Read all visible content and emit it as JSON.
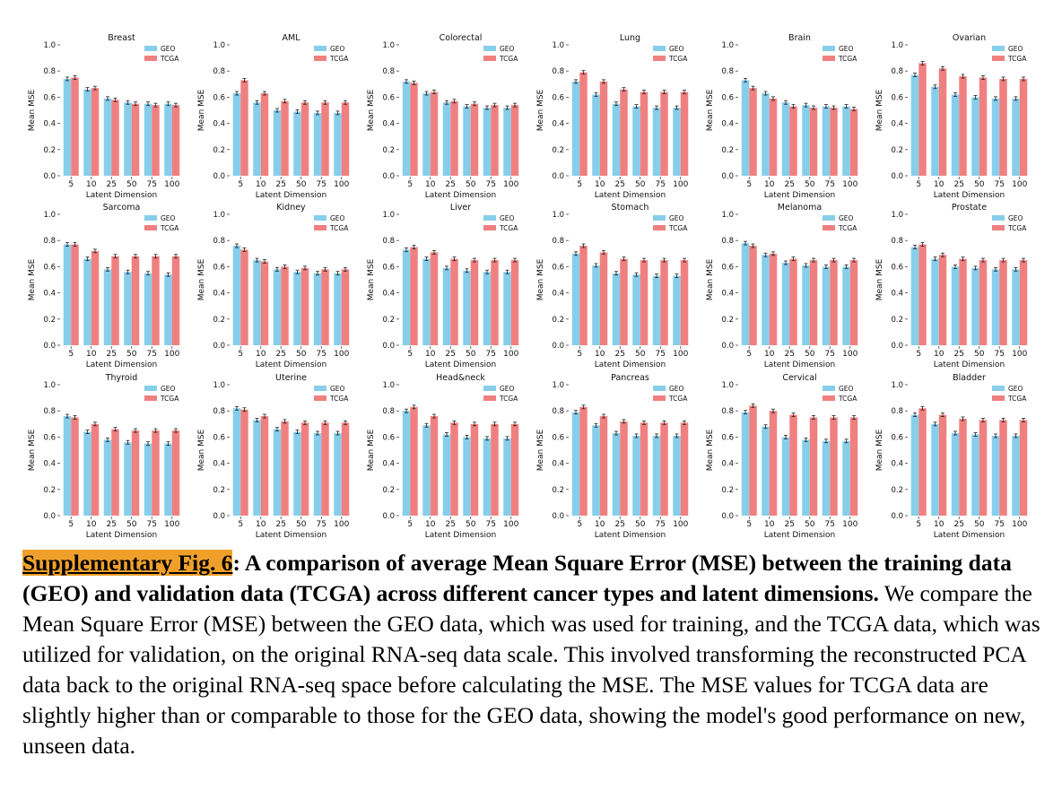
{
  "chart_data": {
    "type": "bar",
    "layout": "6x3 grid of grouped bar charts",
    "categories": [
      "5",
      "10",
      "25",
      "50",
      "75",
      "100"
    ],
    "xlabel": "Latent Dimension",
    "ylabel": "Mean MSE",
    "ylim": [
      0,
      1.0
    ],
    "yticks": [
      "0.0",
      "0.2",
      "0.4",
      "0.6",
      "0.8",
      "1.0"
    ],
    "legend_position": "top-right",
    "series_names": [
      "GEO",
      "TCGA"
    ],
    "series_colors": [
      "#87ceeb",
      "#f08080"
    ],
    "panels": [
      {
        "title": "Breast",
        "series": [
          {
            "name": "GEO",
            "values": [
              0.74,
              0.66,
              0.59,
              0.56,
              0.55,
              0.55
            ]
          },
          {
            "name": "TCGA",
            "values": [
              0.75,
              0.67,
              0.58,
              0.55,
              0.54,
              0.54
            ]
          }
        ]
      },
      {
        "title": "AML",
        "series": [
          {
            "name": "GEO",
            "values": [
              0.63,
              0.56,
              0.5,
              0.49,
              0.48,
              0.48
            ]
          },
          {
            "name": "TCGA",
            "values": [
              0.73,
              0.63,
              0.57,
              0.56,
              0.56,
              0.56
            ]
          }
        ]
      },
      {
        "title": "Colorectal",
        "series": [
          {
            "name": "GEO",
            "values": [
              0.72,
              0.63,
              0.56,
              0.53,
              0.52,
              0.52
            ]
          },
          {
            "name": "TCGA",
            "values": [
              0.71,
              0.64,
              0.57,
              0.55,
              0.54,
              0.54
            ]
          }
        ]
      },
      {
        "title": "Lung",
        "series": [
          {
            "name": "GEO",
            "values": [
              0.72,
              0.62,
              0.55,
              0.53,
              0.52,
              0.52
            ]
          },
          {
            "name": "TCGA",
            "values": [
              0.79,
              0.72,
              0.66,
              0.64,
              0.64,
              0.64
            ]
          }
        ]
      },
      {
        "title": "Brain",
        "series": [
          {
            "name": "GEO",
            "values": [
              0.73,
              0.63,
              0.56,
              0.54,
              0.53,
              0.53
            ]
          },
          {
            "name": "TCGA",
            "values": [
              0.67,
              0.59,
              0.53,
              0.52,
              0.52,
              0.51
            ]
          }
        ]
      },
      {
        "title": "Ovarian",
        "series": [
          {
            "name": "GEO",
            "values": [
              0.77,
              0.68,
              0.62,
              0.6,
              0.59,
              0.59
            ]
          },
          {
            "name": "TCGA",
            "values": [
              0.86,
              0.82,
              0.76,
              0.75,
              0.74,
              0.74
            ]
          }
        ]
      },
      {
        "title": "Sarcoma",
        "series": [
          {
            "name": "GEO",
            "values": [
              0.77,
              0.66,
              0.58,
              0.56,
              0.55,
              0.54
            ]
          },
          {
            "name": "TCGA",
            "values": [
              0.77,
              0.72,
              0.68,
              0.68,
              0.68,
              0.68
            ]
          }
        ]
      },
      {
        "title": "Kidney",
        "series": [
          {
            "name": "GEO",
            "values": [
              0.76,
              0.65,
              0.58,
              0.56,
              0.55,
              0.55
            ]
          },
          {
            "name": "TCGA",
            "values": [
              0.73,
              0.64,
              0.6,
              0.59,
              0.58,
              0.58
            ]
          }
        ]
      },
      {
        "title": "Liver",
        "series": [
          {
            "name": "GEO",
            "values": [
              0.73,
              0.66,
              0.59,
              0.57,
              0.56,
              0.56
            ]
          },
          {
            "name": "TCGA",
            "values": [
              0.75,
              0.71,
              0.66,
              0.65,
              0.65,
              0.65
            ]
          }
        ]
      },
      {
        "title": "Stomach",
        "series": [
          {
            "name": "GEO",
            "values": [
              0.7,
              0.61,
              0.55,
              0.54,
              0.53,
              0.53
            ]
          },
          {
            "name": "TCGA",
            "values": [
              0.76,
              0.71,
              0.66,
              0.65,
              0.65,
              0.65
            ]
          }
        ]
      },
      {
        "title": "Melanoma",
        "series": [
          {
            "name": "GEO",
            "values": [
              0.78,
              0.69,
              0.63,
              0.61,
              0.6,
              0.6
            ]
          },
          {
            "name": "TCGA",
            "values": [
              0.76,
              0.7,
              0.66,
              0.65,
              0.65,
              0.65
            ]
          }
        ]
      },
      {
        "title": "Prostate",
        "series": [
          {
            "name": "GEO",
            "values": [
              0.75,
              0.66,
              0.6,
              0.59,
              0.58,
              0.58
            ]
          },
          {
            "name": "TCGA",
            "values": [
              0.77,
              0.69,
              0.66,
              0.65,
              0.65,
              0.65
            ]
          }
        ]
      },
      {
        "title": "Thyroid",
        "series": [
          {
            "name": "GEO",
            "values": [
              0.76,
              0.64,
              0.58,
              0.56,
              0.55,
              0.55
            ]
          },
          {
            "name": "TCGA",
            "values": [
              0.75,
              0.7,
              0.66,
              0.65,
              0.65,
              0.65
            ]
          }
        ]
      },
      {
        "title": "Uterine",
        "series": [
          {
            "name": "GEO",
            "values": [
              0.82,
              0.73,
              0.66,
              0.64,
              0.63,
              0.63
            ]
          },
          {
            "name": "TCGA",
            "values": [
              0.81,
              0.76,
              0.72,
              0.71,
              0.71,
              0.71
            ]
          }
        ]
      },
      {
        "title": "Head&neck",
        "series": [
          {
            "name": "GEO",
            "values": [
              0.8,
              0.69,
              0.62,
              0.6,
              0.59,
              0.59
            ]
          },
          {
            "name": "TCGA",
            "values": [
              0.83,
              0.76,
              0.71,
              0.7,
              0.7,
              0.7
            ]
          }
        ]
      },
      {
        "title": "Pancreas",
        "series": [
          {
            "name": "GEO",
            "values": [
              0.79,
              0.69,
              0.63,
              0.61,
              0.61,
              0.61
            ]
          },
          {
            "name": "TCGA",
            "values": [
              0.83,
              0.76,
              0.72,
              0.71,
              0.71,
              0.71
            ]
          }
        ]
      },
      {
        "title": "Cervical",
        "series": [
          {
            "name": "GEO",
            "values": [
              0.79,
              0.68,
              0.6,
              0.58,
              0.57,
              0.57
            ]
          },
          {
            "name": "TCGA",
            "values": [
              0.84,
              0.8,
              0.77,
              0.75,
              0.75,
              0.75
            ]
          }
        ]
      },
      {
        "title": "Bladder",
        "series": [
          {
            "name": "GEO",
            "values": [
              0.77,
              0.7,
              0.63,
              0.62,
              0.61,
              0.61
            ]
          },
          {
            "name": "TCGA",
            "values": [
              0.82,
              0.77,
              0.74,
              0.73,
              0.73,
              0.73
            ]
          }
        ]
      }
    ]
  },
  "caption": {
    "label": "Supplementary Fig. 6",
    "bold_text": ": A comparison of average Mean Square Error (MSE) between the training data (GEO) and validation data (TCGA) across different cancer types and latent dimensions.",
    "body_text": " We compare the Mean Square Error (MSE) between the GEO data, which was used for training, and the TCGA data, which was utilized for validation, on the original RNA-seq data scale. This involved transforming the reconstructed PCA data back to the original RNA-seq space before calculating the MSE. The MSE values for TCGA data are slightly higher than or comparable to those for the GEO data, showing the model's good performance on new, unseen data."
  }
}
